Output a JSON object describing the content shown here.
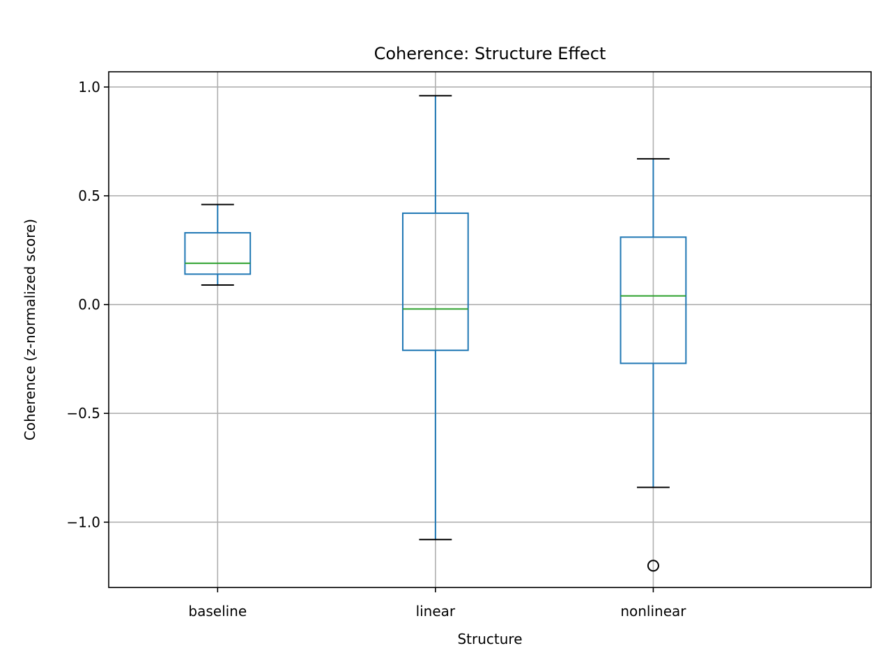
{
  "chart_data": {
    "type": "box",
    "title": "Coherence: Structure Effect",
    "xlabel": "Structure",
    "ylabel": "Coherence (z-normalized score)",
    "ylim": [
      -1.3,
      1.07
    ],
    "yticks": [
      1.0,
      0.5,
      0.0,
      -0.5,
      -1.0
    ],
    "ytick_labels": [
      "1.0",
      "0.5",
      "0.0",
      "−0.5",
      "−1.0"
    ],
    "grid": true,
    "categories": [
      "baseline",
      "linear",
      "nonlinear"
    ],
    "boxes": [
      {
        "category": "baseline",
        "whisker_low": 0.09,
        "q1": 0.14,
        "median": 0.19,
        "q3": 0.33,
        "whisker_high": 0.46,
        "outliers": []
      },
      {
        "category": "linear",
        "whisker_low": -1.08,
        "q1": -0.21,
        "median": -0.02,
        "q3": 0.42,
        "whisker_high": 0.96,
        "outliers": []
      },
      {
        "category": "nonlinear",
        "whisker_low": -0.84,
        "q1": -0.27,
        "median": 0.04,
        "q3": 0.31,
        "whisker_high": 0.67,
        "outliers": [
          -1.2
        ]
      }
    ],
    "colors": {
      "box": "#1f77b4",
      "median": "#2ca02c",
      "cap": "#000000",
      "grid": "#b0b0b0",
      "outlier": "#000000"
    }
  }
}
